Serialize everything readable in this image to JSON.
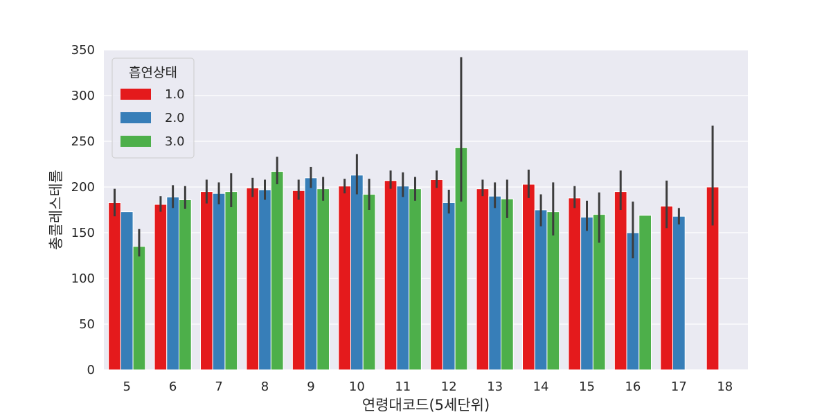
{
  "chart_data": {
    "type": "bar",
    "xlabel": "연령대코드(5세단위)",
    "ylabel": "총콜레스테롤",
    "ylim": [
      0,
      350
    ],
    "yticks": [
      0,
      50,
      100,
      150,
      200,
      250,
      300,
      350
    ],
    "categories": [
      "5",
      "6",
      "7",
      "8",
      "9",
      "10",
      "11",
      "12",
      "13",
      "14",
      "15",
      "16",
      "17",
      "18"
    ],
    "grid": true,
    "legend": {
      "title": "흡연상태",
      "placement": "top-left"
    },
    "series": [
      {
        "name": "1.0",
        "color": "#e41a1c",
        "values": [
          183,
          181,
          195,
          199,
          196,
          201,
          207,
          208,
          198,
          203,
          188,
          195,
          179,
          200
        ],
        "ci_low": [
          168,
          173,
          182,
          189,
          186,
          193,
          198,
          199,
          190,
          188,
          177,
          175,
          155,
          158
        ],
        "ci_high": [
          198,
          190,
          208,
          210,
          208,
          209,
          218,
          218,
          208,
          219,
          201,
          218,
          207,
          267
        ]
      },
      {
        "name": "2.0",
        "color": "#377eb8",
        "values": [
          173,
          189,
          193,
          197,
          210,
          213,
          201,
          183,
          190,
          175,
          167,
          150,
          168,
          null
        ],
        "ci_low": [
          null,
          177,
          181,
          186,
          199,
          192,
          189,
          171,
          177,
          157,
          152,
          122,
          159,
          null
        ],
        "ci_high": [
          null,
          202,
          205,
          208,
          222,
          236,
          216,
          197,
          205,
          192,
          185,
          184,
          177,
          null
        ]
      },
      {
        "name": "3.0",
        "color": "#4daf4a",
        "values": [
          135,
          186,
          195,
          217,
          198,
          192,
          198,
          243,
          187,
          173,
          170,
          169,
          null,
          null
        ],
        "ci_low": [
          124,
          176,
          178,
          203,
          185,
          175,
          185,
          184,
          166,
          147,
          139,
          null,
          null,
          null
        ],
        "ci_high": [
          154,
          201,
          215,
          233,
          211,
          209,
          211,
          342,
          208,
          205,
          194,
          null,
          null,
          null
        ]
      }
    ]
  }
}
